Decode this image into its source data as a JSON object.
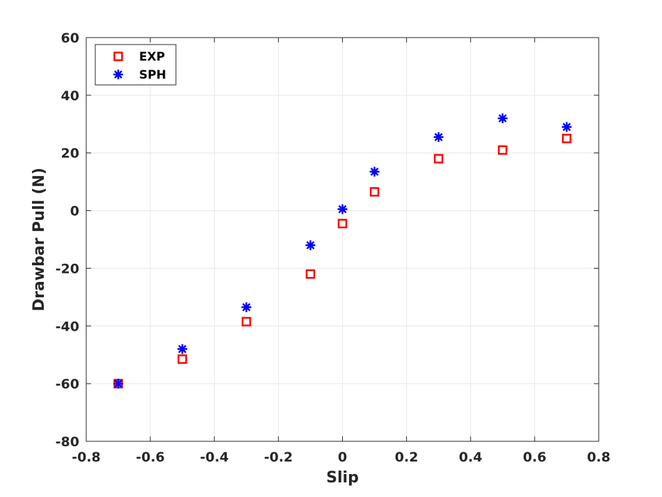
{
  "chart_data": {
    "type": "scatter",
    "title": "",
    "xlabel": "Slip",
    "ylabel": "Drawbar Pull (N)",
    "xlim": [
      -0.8,
      0.8
    ],
    "ylim": [
      -80,
      60
    ],
    "xticks": [
      "-0.8",
      "-0.6",
      "-0.4",
      "-0.2",
      "0",
      "0.2",
      "0.4",
      "0.6",
      "0.8"
    ],
    "yticks": [
      "-80",
      "-60",
      "-40",
      "-20",
      "0",
      "20",
      "40",
      "60"
    ],
    "grid": true,
    "legend_position": "top-left",
    "series": [
      {
        "name": "EXP",
        "marker": "square",
        "color": "#ff0000",
        "x": [
          -0.7,
          -0.5,
          -0.3,
          -0.1,
          0.0,
          0.1,
          0.3,
          0.5,
          0.7
        ],
        "y": [
          -60,
          -51.5,
          -38.5,
          -22,
          -4.5,
          6.5,
          18,
          21,
          25
        ]
      },
      {
        "name": "SPH",
        "marker": "asterisk",
        "color": "#0000ff",
        "x": [
          -0.7,
          -0.5,
          -0.3,
          -0.1,
          0.0,
          0.1,
          0.3,
          0.5,
          0.7
        ],
        "y": [
          -60,
          -48,
          -33.5,
          -12,
          0.5,
          13.5,
          25.5,
          32,
          29
        ]
      }
    ]
  }
}
